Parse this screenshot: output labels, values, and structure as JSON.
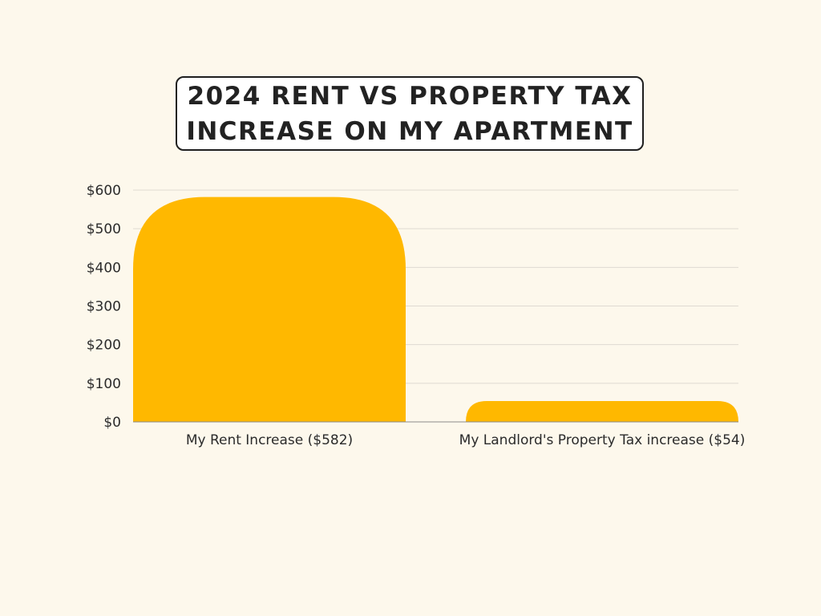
{
  "chart_data": {
    "type": "bar",
    "title": "2024 RENT VS PROPERTY TAX INCREASE ON MY APARTMENT",
    "title_lines": [
      "2024 RENT VS PROPERTY TAX",
      "INCREASE ON MY APARTMENT"
    ],
    "categories": [
      "My Rent Increase ($582)",
      "My Landlord's Property Tax increase ($54)"
    ],
    "values": [
      582,
      54
    ],
    "ylim": [
      0,
      600
    ],
    "yticks": [
      0,
      100,
      200,
      300,
      400,
      500,
      600
    ],
    "ytick_labels": [
      "$0",
      "$100",
      "$200",
      "$300",
      "$400",
      "$500",
      "$600"
    ],
    "xlabel": "",
    "ylabel": "",
    "grid": true,
    "legend": "none",
    "colors": {
      "bar": "#ffb800",
      "grid": "#dedad2",
      "axis": "#8a8a8a",
      "background": "#fdf8ec",
      "text": "#2b2b2b"
    }
  }
}
